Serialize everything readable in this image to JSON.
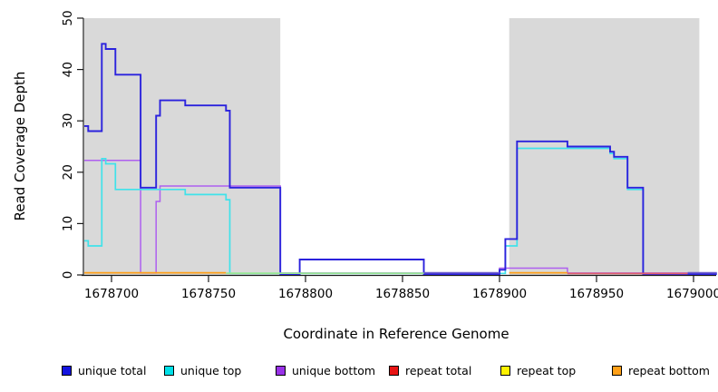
{
  "chart_data": {
    "type": "step-line",
    "title": "",
    "xlabel": "Coordinate in Reference Genome",
    "ylabel": "Read Coverage Depth",
    "xlim": [
      1678686,
      1679012
    ],
    "ylim": [
      0,
      50
    ],
    "x_ticks": [
      1678700,
      1678750,
      1678800,
      1678850,
      1678900,
      1678950,
      1679000
    ],
    "y_ticks": [
      0,
      10,
      20,
      30,
      40,
      50
    ],
    "grid": false,
    "legend_position": "bottom",
    "background_color": "#ffffff",
    "shaded_region_color": "#d9d9d9",
    "shaded_regions": [
      {
        "from": 1678686,
        "to": 1678787
      },
      {
        "from": 1678905,
        "to": 1679003
      }
    ],
    "series": [
      {
        "name": "unique total",
        "color": "#1414e0",
        "draw_color": "#2b22dd",
        "steps": [
          [
            1678686,
            29
          ],
          [
            1678688,
            28
          ],
          [
            1678695,
            45
          ],
          [
            1678697,
            44
          ],
          [
            1678702,
            39
          ],
          [
            1678715,
            17
          ],
          [
            1678723,
            31
          ],
          [
            1678725,
            34
          ],
          [
            1678738,
            33
          ],
          [
            1678759,
            32
          ],
          [
            1678761,
            17
          ],
          [
            1678787,
            0
          ],
          [
            1678797,
            3
          ],
          [
            1678861,
            0
          ],
          [
            1678900,
            1
          ],
          [
            1678903,
            7
          ],
          [
            1678909,
            26
          ],
          [
            1678935,
            25
          ],
          [
            1678957,
            24
          ],
          [
            1678959,
            23
          ],
          [
            1678966,
            17
          ],
          [
            1678974,
            0
          ]
        ]
      },
      {
        "name": "unique top",
        "color": "#00e0e8",
        "draw_color": "#3fe2ea",
        "steps": [
          [
            1678686,
            7
          ],
          [
            1678688,
            6
          ],
          [
            1678695,
            23
          ],
          [
            1678697,
            22
          ],
          [
            1678702,
            17
          ],
          [
            1678738,
            16
          ],
          [
            1678759,
            15
          ],
          [
            1678761,
            0
          ],
          [
            1678903,
            6
          ],
          [
            1678909,
            25
          ],
          [
            1678957,
            24
          ],
          [
            1678959,
            23
          ],
          [
            1678966,
            17
          ],
          [
            1678974,
            0
          ]
        ]
      },
      {
        "name": "unique bottom",
        "color": "#9932e8",
        "draw_color": "#ae60ef",
        "steps": [
          [
            1678686,
            22
          ],
          [
            1678715,
            0
          ],
          [
            1678723,
            14
          ],
          [
            1678725,
            17
          ],
          [
            1678787,
            0
          ],
          [
            1678900,
            1
          ],
          [
            1678935,
            0
          ]
        ]
      },
      {
        "name": "repeat total",
        "color": "#e81414",
        "draw_color": "#e0606e",
        "steps": [
          [
            1678686,
            0
          ]
        ]
      },
      {
        "name": "repeat top",
        "color": "#fff200",
        "draw_color": "#f0f060",
        "steps": [
          [
            1678686,
            0
          ]
        ]
      },
      {
        "name": "repeat bottom",
        "color": "#ffa018",
        "draw_color": "#ffa018",
        "steps": [
          [
            1678686,
            0
          ]
        ]
      }
    ],
    "zero_line_segments": [
      {
        "from": 1678686,
        "to": 1678759,
        "color": "#ffa018",
        "series": "repeat bottom"
      },
      {
        "from": 1678759,
        "to": 1678861,
        "color": "#96e896",
        "series": "unique top + repeat top"
      },
      {
        "from": 1678861,
        "to": 1678900,
        "color": "#6a5acd",
        "series": "unique total + unique bottom"
      },
      {
        "from": 1678905,
        "to": 1678935,
        "color": "#ffa018",
        "series": "repeat bottom"
      },
      {
        "from": 1678935,
        "to": 1678997,
        "color": "#e0606e",
        "series": "repeat total"
      },
      {
        "from": 1678997,
        "to": 1679012,
        "color": "#6a5acd",
        "series": "unique total + unique bottom"
      }
    ]
  }
}
